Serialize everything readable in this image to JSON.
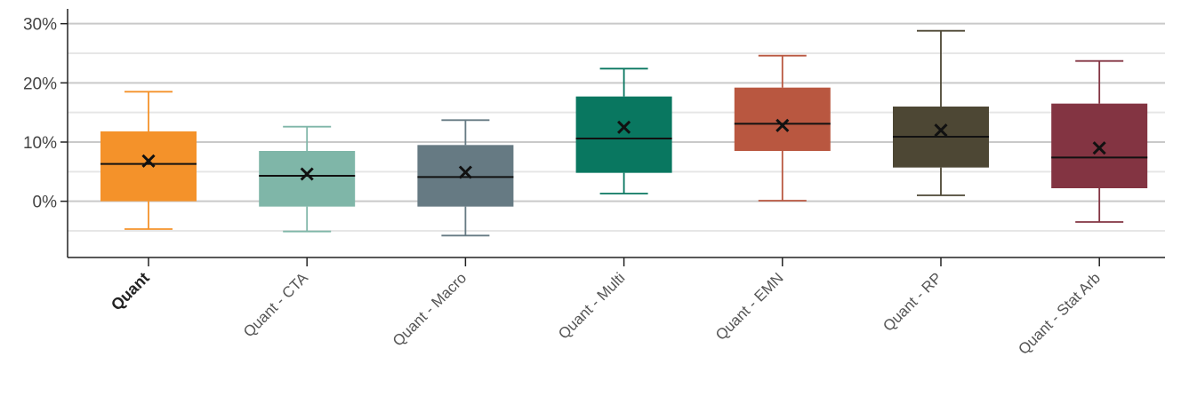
{
  "chart_data": {
    "type": "box",
    "categories": [
      "Quant",
      "Quant - CTA",
      "Quant - Macro",
      "Quant - Multi",
      "Quant - EMN",
      "Quant - RP",
      "Quant - Stat Arb"
    ],
    "highlight_category": "Quant",
    "y_ticks": [
      {
        "value": 0,
        "label": "0%"
      },
      {
        "value": 10,
        "label": "10%"
      },
      {
        "value": 20,
        "label": "20%"
      },
      {
        "value": 30,
        "label": "30%"
      }
    ],
    "ylim": [
      -9.5,
      32.5
    ],
    "grid": true,
    "series": [
      {
        "category": "Quant",
        "whisker_low": -4.7,
        "q1": 0.0,
        "median": 6.3,
        "q3": 11.8,
        "whisker_high": 18.5,
        "mean": 6.8,
        "color": "#F4922A"
      },
      {
        "category": "Quant - CTA",
        "whisker_low": -5.1,
        "q1": -0.9,
        "median": 4.3,
        "q3": 8.5,
        "whisker_high": 12.6,
        "mean": 4.6,
        "color": "#7FB6A8"
      },
      {
        "category": "Quant - Macro",
        "whisker_low": -5.8,
        "q1": -0.9,
        "median": 4.1,
        "q3": 9.5,
        "whisker_high": 13.7,
        "mean": 4.9,
        "color": "#667A83"
      },
      {
        "category": "Quant - Multi",
        "whisker_low": 1.3,
        "q1": 4.8,
        "median": 10.6,
        "q3": 17.7,
        "whisker_high": 22.4,
        "mean": 12.5,
        "color": "#097760"
      },
      {
        "category": "Quant - EMN",
        "whisker_low": 0.1,
        "q1": 8.5,
        "median": 13.1,
        "q3": 19.2,
        "whisker_high": 24.6,
        "mean": 12.8,
        "color": "#B95740"
      },
      {
        "category": "Quant - RP",
        "whisker_low": 1.0,
        "q1": 5.7,
        "median": 10.9,
        "q3": 16.0,
        "whisker_high": 28.8,
        "mean": 12.0,
        "color": "#4D4734"
      },
      {
        "category": "Quant - Stat Arb",
        "whisker_low": -3.5,
        "q1": 2.2,
        "median": 7.4,
        "q3": 16.5,
        "whisker_high": 23.7,
        "mean": 9.0,
        "color": "#833442"
      }
    ]
  }
}
